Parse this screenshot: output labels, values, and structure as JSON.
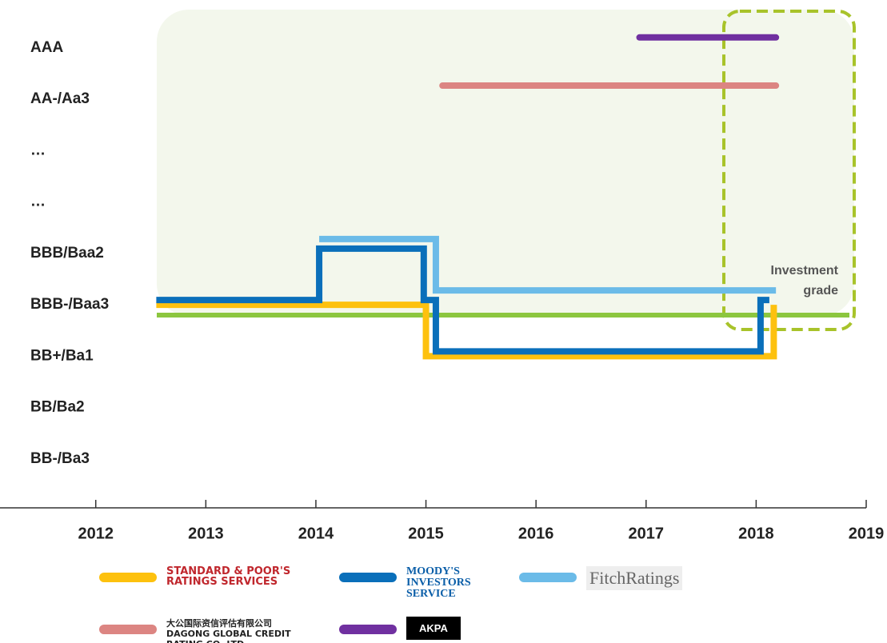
{
  "chart_data": {
    "type": "step",
    "yticks": [
      {
        "value": 9,
        "label": "AAA"
      },
      {
        "value": 8,
        "label": "AA-/Aa3"
      },
      {
        "value": 7,
        "label": "…"
      },
      {
        "value": 6,
        "label": "…"
      },
      {
        "value": 5,
        "label": "BBB/Baa2"
      },
      {
        "value": 4,
        "label": "BBB-/Baa3"
      },
      {
        "value": 3,
        "label": "BB+/Ba1"
      },
      {
        "value": 2,
        "label": "BB/Ba2"
      },
      {
        "value": 1,
        "label": "BB-/Ba3"
      }
    ],
    "ylim": [
      0.05,
      9.93
    ],
    "xlim": [
      2011.13,
      2019
    ],
    "xticks": [
      2012,
      2013,
      2014,
      2015,
      2016,
      2017,
      2018,
      2019
    ],
    "threshold": {
      "y": 3.8,
      "color": "#8cc63f"
    },
    "annotation": "Investment grade",
    "series": [
      {
        "name": "STANDARD & POOR'S RATINGS SERVICES",
        "color": "#fdc10e",
        "x": [
          2012.55,
          2015.0,
          2018.16
        ],
        "values": [
          4,
          3,
          4
        ]
      },
      {
        "name": "MOODY'S INVESTORS SERVICE",
        "color": "#0a6fba",
        "x": [
          2012.55,
          2014.03,
          2014.98,
          2015.09,
          2018.04,
          2018.12
        ],
        "values": [
          4,
          5,
          4,
          3,
          4,
          4
        ]
      },
      {
        "name": "FitchRatings",
        "color": "#6bbbe8",
        "x": [
          2014.03,
          2015.09,
          2018.18
        ],
        "values": [
          5,
          4,
          4
        ]
      },
      {
        "name": "大公国际资信评估有限公司 DAGONG GLOBAL CREDIT RATING CO.,LTD",
        "color": "#dc8582",
        "x": [
          2015.15,
          2018.18
        ],
        "values": [
          8,
          8
        ]
      },
      {
        "name": "AKPA",
        "color": "#7030a0",
        "x": [
          2016.94,
          2018.18
        ],
        "values": [
          9,
          9
        ]
      }
    ]
  }
}
